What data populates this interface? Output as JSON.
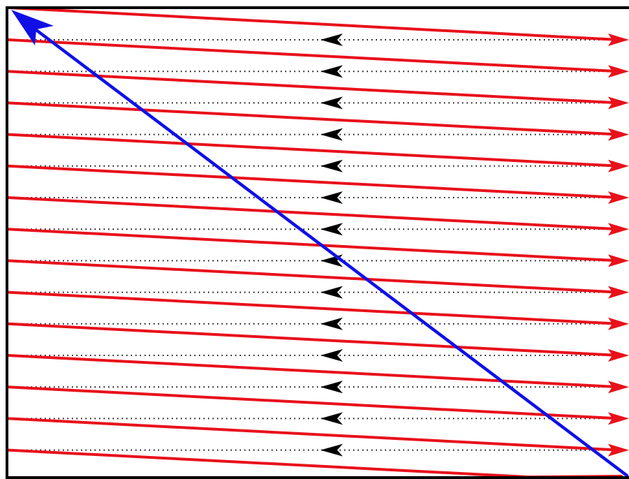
{
  "diagram": {
    "kind": "raster-scan-pattern",
    "scan_line_count": 15,
    "colors": {
      "background": "#ffffff",
      "frame": "#000000",
      "scan_line": "#e8111b",
      "return_line": "#000000",
      "vertical_retrace": "#1010e6"
    },
    "icons": {
      "scan_arrowhead": "arrowhead-right-icon",
      "return_arrowhead": "arrowhead-left-icon",
      "retrace_arrowhead": "arrowhead-up-left-icon"
    }
  }
}
